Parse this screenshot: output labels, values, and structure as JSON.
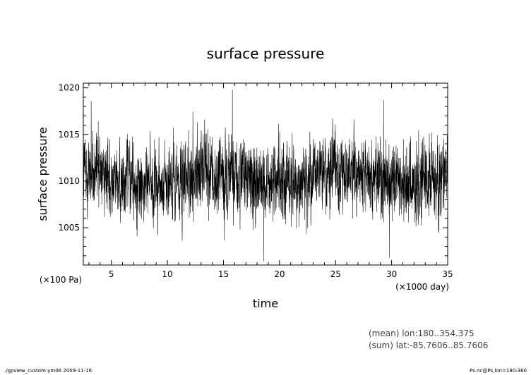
{
  "chart_data": {
    "type": "line",
    "title": "surface pressure",
    "xlabel": "time",
    "ylabel": "surface pressure",
    "x_units": "(×1000 day)",
    "y_units": "(×100 Pa)",
    "xlim": [
      2.5,
      35
    ],
    "ylim": [
      1001,
      1020.5
    ],
    "x_ticks": [
      5,
      10,
      15,
      20,
      25,
      30,
      35
    ],
    "x_tick_labels": [
      "5",
      "10",
      "15",
      "20",
      "25",
      "30",
      "35"
    ],
    "y_ticks": [
      1005,
      1010,
      1015,
      1020
    ],
    "y_tick_labels": [
      "1005",
      "1010",
      "1015",
      "1020"
    ],
    "grid": false,
    "series": [
      {
        "mean": 1010.3,
        "typical_min": 1003,
        "typical_max": 1018.5,
        "extreme_points": [
          {
            "x": 15.8,
            "y": 1019.8
          },
          {
            "x": 18.6,
            "y": 1001.4
          },
          {
            "x": 29.8,
            "y": 1001.8
          },
          {
            "x": 3.2,
            "y": 1018.6
          },
          {
            "x": 29.3,
            "y": 1018.7
          }
        ]
      }
    ],
    "annotations": [
      "(mean) lon:180..354.375",
      "(sum) lat:-85.7606..85.7606"
    ]
  },
  "footer": {
    "left": "./gpview_custom-ym06  2009-11-16",
    "right": "Ps.nc@Ps,lon=180:360"
  }
}
